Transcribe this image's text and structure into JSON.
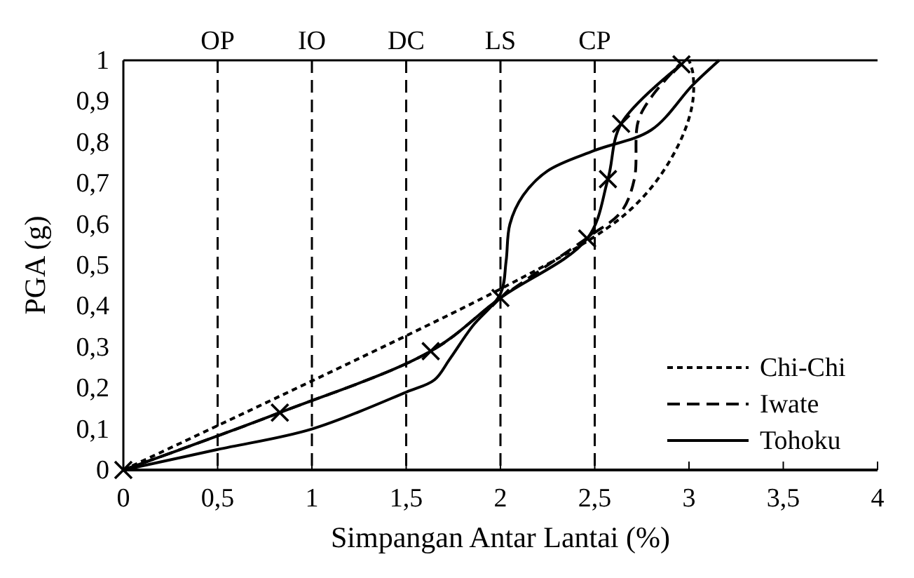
{
  "chart_data": {
    "type": "line",
    "xlabel": "Simpangan Antar Lantai (%)",
    "ylabel": "PGA (g)",
    "xlim": [
      0,
      4
    ],
    "ylim": [
      0,
      1
    ],
    "xticks": [
      0,
      {
        "value": 0.5,
        "label": "0,5"
      },
      1,
      {
        "value": 1.5,
        "label": "1,5"
      },
      2,
      {
        "value": 2.5,
        "label": "2,5"
      },
      3,
      {
        "value": 3.5,
        "label": "3,5"
      },
      4
    ],
    "yticks": [
      0,
      {
        "value": 0.1,
        "label": "0,1"
      },
      {
        "value": 0.2,
        "label": "0,2"
      },
      {
        "value": 0.3,
        "label": "0,3"
      },
      {
        "value": 0.4,
        "label": "0,4"
      },
      {
        "value": 0.5,
        "label": "0,5"
      },
      {
        "value": 0.6,
        "label": "0,6"
      },
      {
        "value": 0.7,
        "label": "0,7"
      },
      {
        "value": 0.8,
        "label": "0,8"
      },
      {
        "value": 0.9,
        "label": "0,9"
      },
      1
    ],
    "grid": false,
    "legend": "bottom right",
    "marker": "none",
    "ref_lines": [
      {
        "axis": "x",
        "value": 0.5,
        "label": "OP",
        "line_style": "dashed",
        "color": "#000000"
      },
      {
        "axis": "x",
        "value": 1,
        "label": "IO",
        "line_style": "dashed",
        "color": "#000000"
      },
      {
        "axis": "x",
        "value": 1.5,
        "label": "DC",
        "line_style": "dashed",
        "color": "#000000"
      },
      {
        "axis": "x",
        "value": 2,
        "label": "LS",
        "line_style": "dashed",
        "color": "#000000"
      },
      {
        "axis": "x",
        "value": 2.5,
        "label": "CP",
        "line_style": "dashed",
        "color": "#000000"
      }
    ],
    "series": [
      {
        "name": "Chi-Chi",
        "color": "#000000",
        "line_style": "dotted",
        "x": [
          0,
          1.95,
          2.5,
          2.7,
          2.85,
          2.97,
          3.02,
          3.02,
          3.0
        ],
        "values": [
          0,
          0.43,
          0.57,
          0.64,
          0.72,
          0.82,
          0.9,
          0.97,
          1.0
        ]
      },
      {
        "name": "Iwate",
        "color": "#000000",
        "line_style": "dashed",
        "x": [
          0,
          0.83,
          1.63,
          2.0,
          2.47,
          2.64,
          2.71,
          2.73,
          2.8,
          2.95
        ],
        "values": [
          0,
          0.14,
          0.29,
          0.42,
          0.57,
          0.63,
          0.71,
          0.85,
          0.91,
          0.99
        ]
      },
      {
        "name": "Tohoku",
        "color": "#000000",
        "line_style": "solid",
        "x": [
          0,
          0.5,
          1,
          1.5,
          1.65,
          1.73,
          1.85,
          2.0,
          2.03,
          2.05,
          2.12,
          2.25,
          2.5,
          2.8,
          3.02,
          3.16
        ],
        "values": [
          0,
          0.05,
          0.1,
          0.19,
          0.22,
          0.27,
          0.35,
          0.43,
          0.51,
          0.6,
          0.67,
          0.73,
          0.78,
          0.83,
          0.94,
          1.0
        ]
      },
      {
        "color": "#000000",
        "line_style": "solid",
        "marker": "cross",
        "x": [
          0,
          0.83,
          1.63,
          2.0,
          2.46,
          2.57,
          2.64,
          2.96
        ],
        "values": [
          0,
          0.14,
          0.29,
          0.42,
          0.565,
          0.71,
          0.845,
          0.99
        ]
      }
    ]
  }
}
